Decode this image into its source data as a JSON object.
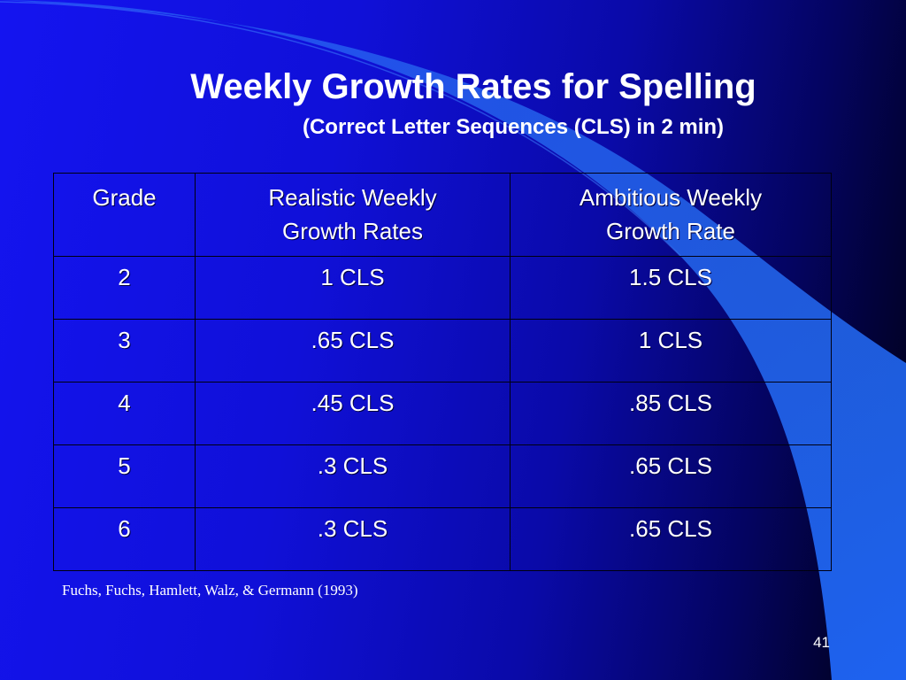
{
  "slide": {
    "title": "Weekly Growth Rates for Spelling",
    "subtitle": "(Correct Letter Sequences (CLS) in 2 min)",
    "citation": "Fuchs, Fuchs, Hamlett, Walz, & Germann (1993)",
    "page_number": "41"
  },
  "table": {
    "headers": [
      [
        "Grade"
      ],
      [
        "Realistic Weekly",
        "Growth Rates"
      ],
      [
        "Ambitious Weekly",
        "Growth Rate"
      ]
    ],
    "rows": [
      [
        "2",
        "1 CLS",
        "1.5 CLS"
      ],
      [
        "3",
        ".65 CLS",
        "1 CLS"
      ],
      [
        "4",
        ".45 CLS",
        ".85 CLS"
      ],
      [
        "5",
        ".3 CLS",
        ".65 CLS"
      ],
      [
        "6",
        ".3 CLS",
        ".65 CLS"
      ]
    ]
  },
  "colors": {
    "background": "#1414f0",
    "accent": "#2a6cf5",
    "text": "#ffffff"
  }
}
